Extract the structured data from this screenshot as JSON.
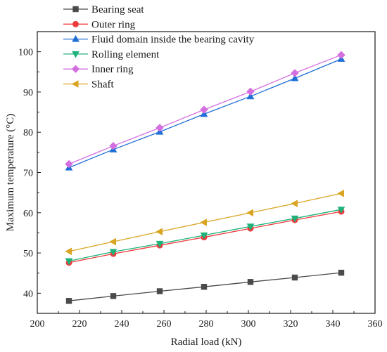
{
  "chart_data": {
    "type": "line",
    "xlabel": "Radial load (kN)",
    "ylabel": "Maximum temperature (°C)",
    "xlim": [
      200,
      360
    ],
    "ylim": [
      35,
      105
    ],
    "xticks": [
      200,
      220,
      240,
      260,
      280,
      300,
      320,
      340,
      360
    ],
    "yticks": [
      40,
      50,
      60,
      70,
      80,
      90,
      100
    ],
    "x": [
      215,
      236,
      258,
      279,
      301,
      322,
      344
    ],
    "grid": false,
    "legend_position": "top-left",
    "series": [
      {
        "name": "Bearing seat",
        "color": "#4a4a4a",
        "marker": "square",
        "values": [
          38.1,
          39.3,
          40.5,
          41.6,
          42.8,
          43.9,
          45.1
        ]
      },
      {
        "name": "Outer ring",
        "color": "#ee3a3a",
        "marker": "circle",
        "values": [
          47.6,
          49.8,
          51.9,
          53.9,
          56.1,
          58.2,
          60.3
        ]
      },
      {
        "name": "Fluid domain inside the bearing cavity",
        "color": "#1f6fd6",
        "marker": "triangle-up",
        "values": [
          71.2,
          75.7,
          80.1,
          84.5,
          88.9,
          93.4,
          98.2
        ]
      },
      {
        "name": "Rolling element",
        "color": "#1db27a",
        "marker": "triangle-down",
        "values": [
          48.0,
          50.3,
          52.3,
          54.4,
          56.6,
          58.6,
          60.8
        ]
      },
      {
        "name": "Inner ring",
        "color": "#d46fe0",
        "marker": "diamond",
        "values": [
          72.1,
          76.6,
          81.1,
          85.6,
          90.1,
          94.7,
          99.2
        ]
      },
      {
        "name": "Shaft",
        "color": "#d9a521",
        "marker": "triangle-left",
        "values": [
          50.4,
          52.8,
          55.3,
          57.6,
          60.0,
          62.3,
          64.8
        ]
      }
    ]
  }
}
